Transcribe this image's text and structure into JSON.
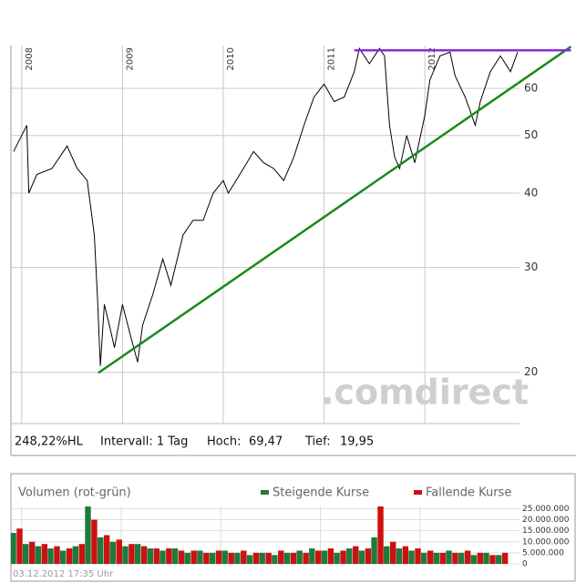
{
  "chart_data": [
    {
      "type": "line",
      "log_scale": true,
      "grid": true,
      "color": "#000000",
      "watermark": ".comdirect",
      "info": {
        "hl_change": "248,22%HL",
        "interval": "Intervall: 1 Tag",
        "high_label": "Hoch:",
        "high": "69,47",
        "low_label": "Tief:",
        "low": "19,95"
      },
      "xlim": [
        2007.92,
        2013.5
      ],
      "xticks": [
        2008,
        2009,
        2010,
        2011,
        2012
      ],
      "ylim": [
        16.4,
        70.8
      ],
      "yticks": [
        20,
        30,
        40,
        50,
        60
      ],
      "x": [
        2007.92,
        2008.0,
        2008.05,
        2008.07,
        2008.15,
        2008.3,
        2008.45,
        2008.55,
        2008.65,
        2008.72,
        2008.75,
        2008.78,
        2008.82,
        2008.87,
        2008.92,
        2009.0,
        2009.08,
        2009.15,
        2009.2,
        2009.3,
        2009.4,
        2009.48,
        2009.6,
        2009.7,
        2009.8,
        2009.9,
        2010.0,
        2010.05,
        2010.2,
        2010.3,
        2010.4,
        2010.5,
        2010.6,
        2010.7,
        2010.8,
        2010.9,
        2011.0,
        2011.1,
        2011.2,
        2011.3,
        2011.35,
        2011.45,
        2011.55,
        2011.6,
        2011.65,
        2011.7,
        2011.75,
        2011.82,
        2011.9,
        2012.0,
        2012.05,
        2012.15,
        2012.25,
        2012.3,
        2012.4,
        2012.45,
        2012.5,
        2012.55,
        2012.65,
        2012.75,
        2012.85,
        2012.92
      ],
      "values": [
        47,
        50,
        52,
        40,
        43,
        44,
        48,
        44,
        42,
        34,
        27,
        20.5,
        26,
        24,
        22,
        26,
        23,
        20.8,
        24,
        27,
        31,
        28,
        34,
        36,
        36,
        40,
        42,
        40,
        44,
        47,
        45,
        44,
        42,
        46,
        52,
        58,
        61,
        57,
        58,
        64,
        70,
        66,
        70,
        68,
        52,
        46,
        44,
        50,
        45,
        54,
        62,
        68,
        69,
        63,
        58,
        55,
        52,
        57,
        64,
        68,
        64,
        69
      ],
      "trend_lines": [
        {
          "color": "#1a8a1a",
          "x": [
            2008.76,
            2013.45
          ],
          "values": [
            19.95,
            70.5
          ]
        },
        {
          "color": "#8a2be2",
          "x": [
            2011.3,
            2013.45
          ],
          "values": [
            69.5,
            69.5
          ]
        }
      ]
    },
    {
      "type": "bar",
      "title": "Volumen (rot-grün)",
      "footnote": "03.12.2012 17:35 Uhr",
      "xlim": [
        2007.92,
        2013.0
      ],
      "ylim": [
        0,
        26000000
      ],
      "yticks": [
        0,
        {
          "value": 5000000,
          "label": "5.000.000"
        },
        {
          "value": 10000000,
          "label": "10.000.000"
        },
        {
          "value": 15000000,
          "label": "15.000.000"
        },
        {
          "value": 20000000,
          "label": "20.000.000"
        },
        {
          "value": 25000000,
          "label": "25.000.000"
        }
      ],
      "x": [
        2007.95,
        2008.075,
        2008.2,
        2008.325,
        2008.45,
        2008.575,
        2008.7,
        2008.825,
        2008.95,
        2009.075,
        2009.2,
        2009.325,
        2009.45,
        2009.575,
        2009.7,
        2009.825,
        2009.95,
        2010.075,
        2010.2,
        2010.325,
        2010.45,
        2010.575,
        2010.7,
        2010.825,
        2010.95,
        2011.075,
        2011.2,
        2011.325,
        2011.45,
        2011.575,
        2011.7,
        2011.825,
        2011.95,
        2012.075,
        2012.2,
        2012.325,
        2012.45,
        2012.575,
        2012.7,
        2012.825
      ],
      "series": [
        {
          "name": "Steigende Kurse",
          "color": "#1e7b3c",
          "values": [
            14000000,
            9000000,
            8000000,
            7000000,
            6000000,
            8000000,
            26000000,
            12000000,
            10000000,
            8000000,
            9000000,
            7000000,
            6000000,
            7000000,
            5000000,
            6000000,
            5000000,
            6000000,
            5000000,
            4000000,
            5000000,
            4000000,
            5000000,
            6000000,
            7000000,
            6000000,
            5000000,
            7000000,
            6000000,
            12000000,
            8000000,
            7000000,
            6000000,
            5000000,
            5000000,
            6000000,
            5000000,
            4000000,
            5000000,
            4000000
          ]
        },
        {
          "name": "Fallende Kurse",
          "color": "#cc1111",
          "values": [
            16000000,
            10000000,
            9000000,
            8000000,
            7000000,
            9000000,
            20000000,
            13000000,
            11000000,
            9000000,
            8000000,
            7000000,
            7000000,
            6000000,
            6000000,
            5000000,
            6000000,
            5000000,
            6000000,
            5000000,
            5000000,
            6000000,
            5000000,
            5000000,
            6000000,
            7000000,
            6000000,
            8000000,
            7000000,
            26000000,
            10000000,
            8000000,
            7000000,
            6000000,
            5000000,
            5000000,
            6000000,
            5000000,
            4000000,
            5000000
          ]
        }
      ]
    }
  ]
}
